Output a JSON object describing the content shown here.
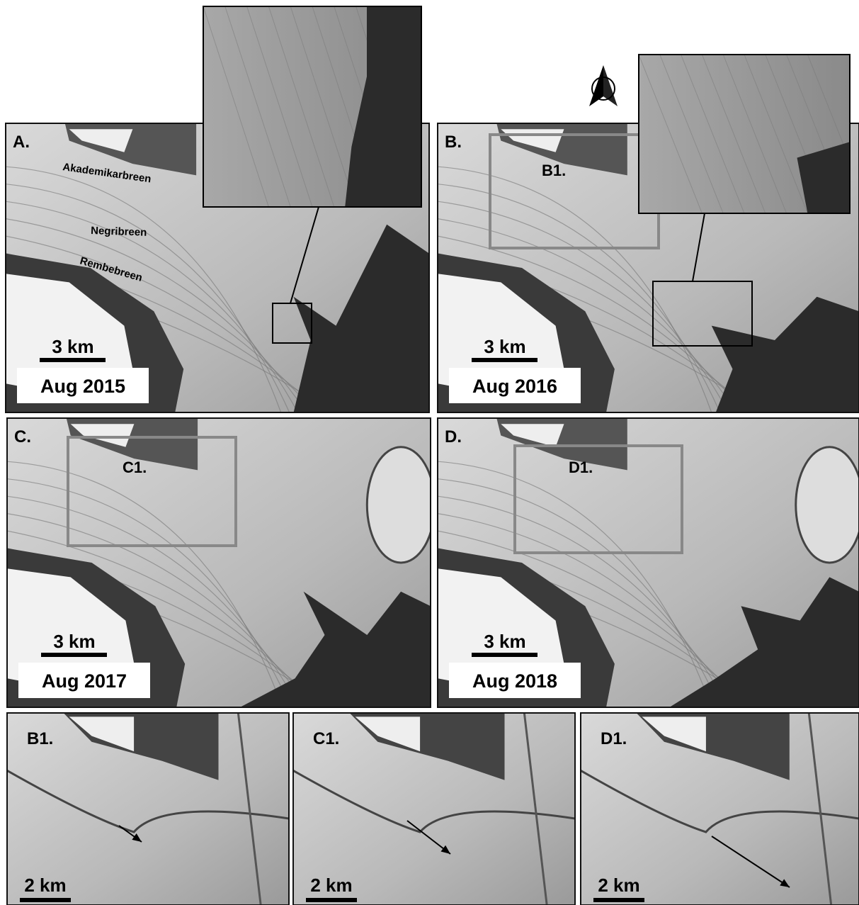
{
  "panels": [
    {
      "label": "A.",
      "date": "Aug 2015",
      "scale": "3 km",
      "glaciers": [
        "Akademikarbreen",
        "Negribreen",
        "Rembebreen"
      ]
    },
    {
      "label": "B.",
      "date": "Aug 2016",
      "scale": "3 km",
      "inset": "B1."
    },
    {
      "label": "C.",
      "date": "Aug 2017",
      "scale": "3 km",
      "inset": "C1."
    },
    {
      "label": "D.",
      "date": "Aug 2018",
      "scale": "3 km",
      "inset": "D1."
    }
  ],
  "zooms": [
    {
      "label": "B1.",
      "scale": "2 km"
    },
    {
      "label": "C1.",
      "scale": "2 km"
    },
    {
      "label": "D1.",
      "scale": "2 km"
    }
  ]
}
